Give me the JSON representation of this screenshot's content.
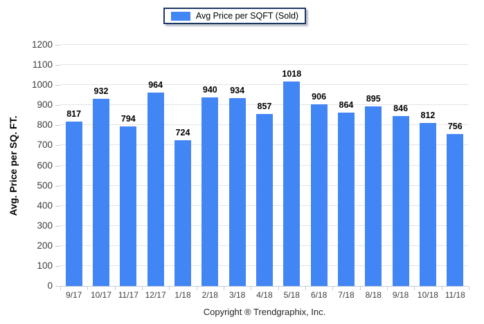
{
  "legend": {
    "label": "Avg Price per SQFT (Sold)",
    "swatch_color": "#4285f4"
  },
  "footer": {
    "copyright": "Copyright ® Trendgraphix, Inc."
  },
  "chart_data": {
    "type": "bar",
    "title": "",
    "series_name": "Avg Price per SQFT (Sold)",
    "categories": [
      "9/17",
      "10/17",
      "11/17",
      "12/17",
      "1/18",
      "2/18",
      "3/18",
      "4/18",
      "5/18",
      "6/18",
      "7/18",
      "8/18",
      "9/18",
      "10/18",
      "11/18"
    ],
    "values": [
      817,
      932,
      794,
      964,
      724,
      940,
      934,
      857,
      1018,
      906,
      864,
      895,
      846,
      812,
      756
    ],
    "xlabel": "",
    "ylabel": "Avg. Price per SQ. FT.",
    "ylim": [
      0,
      1200
    ],
    "ytick_step": 100,
    "grid": true,
    "value_labels": true,
    "legend_position": "top-center",
    "bar_color": "#4285f4",
    "gridline_color": "#e4e4e4",
    "axis_line_color": "#c4cbd4"
  }
}
